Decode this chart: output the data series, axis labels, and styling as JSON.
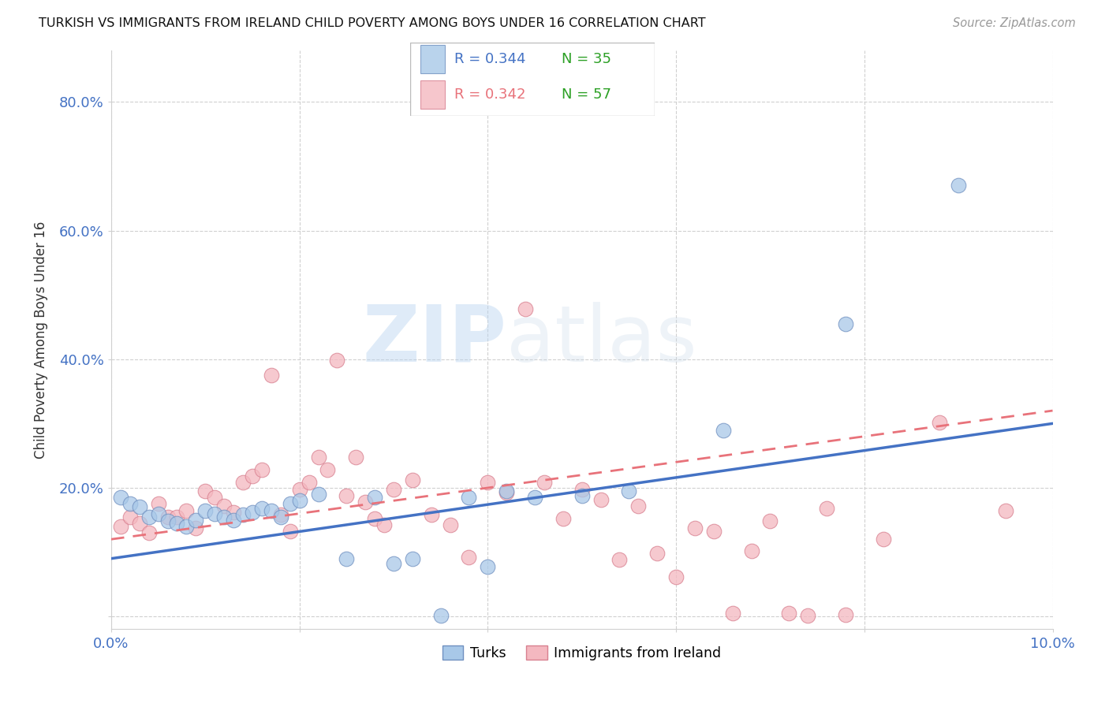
{
  "title": "TURKISH VS IMMIGRANTS FROM IRELAND CHILD POVERTY AMONG BOYS UNDER 16 CORRELATION CHART",
  "source": "Source: ZipAtlas.com",
  "xlabel": "",
  "ylabel": "Child Poverty Among Boys Under 16",
  "xlim": [
    0.0,
    0.1
  ],
  "ylim": [
    -0.02,
    0.88
  ],
  "xticks": [
    0.0,
    0.02,
    0.04,
    0.06,
    0.08,
    0.1
  ],
  "yticks": [
    0.0,
    0.2,
    0.4,
    0.6,
    0.8
  ],
  "ytick_labels": [
    "",
    "20.0%",
    "40.0%",
    "60.0%",
    "80.0%"
  ],
  "xtick_labels": [
    "0.0%",
    "",
    "",
    "",
    "",
    "10.0%"
  ],
  "turks_R": 0.344,
  "turks_N": 35,
  "ireland_R": 0.342,
  "ireland_N": 57,
  "turks_color": "#a8c8e8",
  "ireland_color": "#f4b8c0",
  "trendline_turks_color": "#4472c4",
  "trendline_ireland_color": "#e8727a",
  "axis_color": "#4472c4",
  "watermark_zip": "ZIP",
  "watermark_atlas": "atlas",
  "turks_x": [
    0.001,
    0.002,
    0.003,
    0.004,
    0.005,
    0.006,
    0.007,
    0.008,
    0.009,
    0.01,
    0.011,
    0.012,
    0.013,
    0.014,
    0.015,
    0.016,
    0.017,
    0.018,
    0.019,
    0.02,
    0.022,
    0.025,
    0.028,
    0.03,
    0.032,
    0.035,
    0.038,
    0.04,
    0.042,
    0.045,
    0.05,
    0.055,
    0.065,
    0.078,
    0.09
  ],
  "turks_y": [
    0.185,
    0.175,
    0.17,
    0.155,
    0.16,
    0.148,
    0.145,
    0.14,
    0.15,
    0.165,
    0.16,
    0.155,
    0.15,
    0.158,
    0.162,
    0.168,
    0.165,
    0.155,
    0.175,
    0.18,
    0.19,
    0.09,
    0.185,
    0.082,
    0.09,
    0.002,
    0.185,
    0.078,
    0.195,
    0.185,
    0.188,
    0.195,
    0.29,
    0.455,
    0.67
  ],
  "ireland_x": [
    0.001,
    0.002,
    0.003,
    0.004,
    0.005,
    0.006,
    0.007,
    0.008,
    0.009,
    0.01,
    0.011,
    0.012,
    0.013,
    0.014,
    0.015,
    0.016,
    0.017,
    0.018,
    0.019,
    0.02,
    0.021,
    0.022,
    0.023,
    0.024,
    0.025,
    0.026,
    0.027,
    0.028,
    0.029,
    0.03,
    0.032,
    0.034,
    0.036,
    0.038,
    0.04,
    0.042,
    0.044,
    0.046,
    0.048,
    0.05,
    0.052,
    0.054,
    0.056,
    0.058,
    0.06,
    0.062,
    0.064,
    0.066,
    0.068,
    0.07,
    0.072,
    0.074,
    0.076,
    0.078,
    0.082,
    0.088,
    0.095
  ],
  "ireland_y": [
    0.14,
    0.155,
    0.145,
    0.13,
    0.175,
    0.155,
    0.155,
    0.165,
    0.138,
    0.195,
    0.185,
    0.172,
    0.162,
    0.208,
    0.218,
    0.228,
    0.375,
    0.158,
    0.132,
    0.198,
    0.208,
    0.248,
    0.228,
    0.398,
    0.188,
    0.248,
    0.178,
    0.152,
    0.142,
    0.198,
    0.212,
    0.158,
    0.142,
    0.092,
    0.208,
    0.192,
    0.478,
    0.208,
    0.152,
    0.198,
    0.182,
    0.088,
    0.172,
    0.098,
    0.062,
    0.138,
    0.132,
    0.005,
    0.102,
    0.148,
    0.005,
    0.002,
    0.168,
    0.003,
    0.12,
    0.302,
    0.165
  ],
  "turks_trendline_x": [
    0.0,
    0.1
  ],
  "turks_trendline_y": [
    0.09,
    0.3
  ],
  "ireland_trendline_x": [
    0.0,
    0.1
  ],
  "ireland_trendline_y": [
    0.12,
    0.32
  ]
}
